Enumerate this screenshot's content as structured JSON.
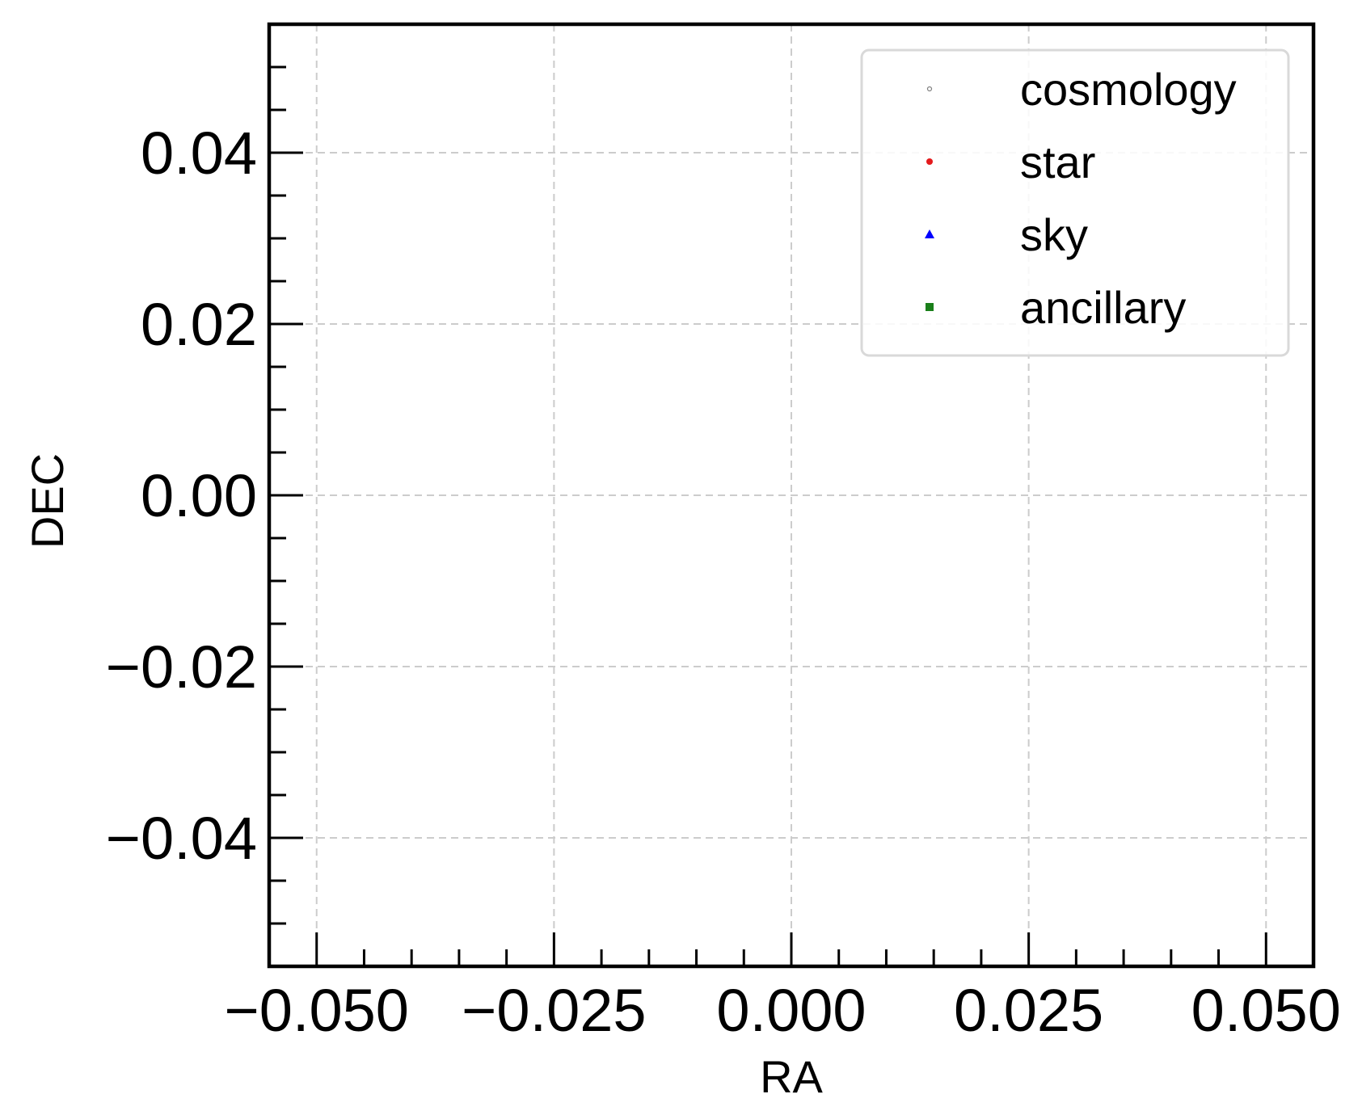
{
  "chart_data": {
    "type": "scatter",
    "xlabel": "RA",
    "ylabel": "DEC",
    "xlim": [
      -0.055,
      0.055
    ],
    "ylim": [
      -0.055,
      0.055
    ],
    "xticks": [
      -0.05,
      -0.025,
      0.0,
      0.025,
      0.05
    ],
    "xtick_labels": [
      "−0.050",
      "−0.025",
      "0.000",
      "0.025",
      "0.050"
    ],
    "yticks": [
      -0.04,
      -0.02,
      0.0,
      0.02,
      0.04
    ],
    "ytick_labels": [
      "−0.04",
      "−0.02",
      "0.00",
      "0.02",
      "0.04"
    ],
    "x_minor_step": 0.005,
    "y_minor_step": 0.005,
    "grid": true,
    "legend_position": "top-right",
    "series": [
      {
        "name": "cosmology",
        "marker": "circle-open",
        "color": "#808080",
        "points": []
      },
      {
        "name": "star",
        "marker": "circle",
        "color": "#e41a1c",
        "points": []
      },
      {
        "name": "sky",
        "marker": "triangle",
        "color": "#0000ff",
        "points": []
      },
      {
        "name": "ancillary",
        "marker": "square",
        "color": "#1a7f1a",
        "points": []
      }
    ]
  }
}
